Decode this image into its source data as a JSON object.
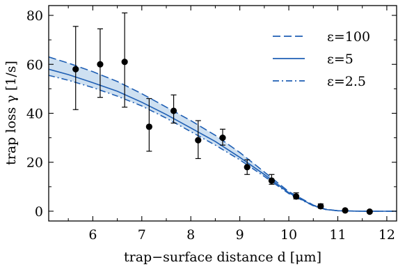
{
  "chart_data": {
    "type": "line",
    "xlabel": "trap−surface distance d [μm]",
    "ylabel": "trap loss γ [1/s]",
    "xlim": [
      5.1,
      12.2
    ],
    "ylim": [
      -4,
      84
    ],
    "x_ticks": [
      "6",
      "7",
      "8",
      "9",
      "10",
      "11",
      "12"
    ],
    "x_tick_values": [
      6,
      7,
      8,
      9,
      10,
      11,
      12
    ],
    "y_ticks": [
      "0",
      "20",
      "40",
      "60",
      "80"
    ],
    "y_tick_values": [
      0,
      20,
      40,
      60,
      80
    ],
    "line_color": "#1f5fb4",
    "band_color": "#c6dbef",
    "legend": {
      "placement": "top-right",
      "entries": [
        "ε=100",
        "ε=5",
        "ε=2.5"
      ]
    },
    "series": [
      {
        "name": "ε=100",
        "style": "dashed",
        "x": [
          5.1,
          5.5,
          6.0,
          6.5,
          7.0,
          7.5,
          8.0,
          8.5,
          9.0,
          9.5,
          10.0,
          10.5,
          10.75,
          11.0,
          11.5,
          12.2
        ],
        "y": [
          63.0,
          60.5,
          57.0,
          53.0,
          48.0,
          42.5,
          37.0,
          31.0,
          24.0,
          16.0,
          8.0,
          2.5,
          0.8,
          0.2,
          0.0,
          0.0
        ]
      },
      {
        "name": "ε=5",
        "style": "solid",
        "x": [
          5.1,
          5.5,
          6.0,
          6.5,
          7.0,
          7.5,
          8.0,
          8.5,
          9.0,
          9.5,
          10.0,
          10.5,
          10.75,
          11.0,
          11.5,
          12.2
        ],
        "y": [
          58.0,
          55.8,
          52.5,
          49.0,
          44.5,
          39.5,
          34.0,
          28.5,
          22.0,
          15.0,
          7.5,
          2.3,
          0.7,
          0.2,
          0.0,
          0.0
        ]
      },
      {
        "name": "ε=2.5",
        "style": "dashdot",
        "x": [
          5.1,
          5.5,
          6.0,
          6.5,
          7.0,
          7.5,
          8.0,
          8.5,
          9.0,
          9.5,
          10.0,
          10.5,
          10.75,
          11.0,
          11.5,
          12.2
        ],
        "y": [
          55.5,
          53.5,
          50.5,
          47.0,
          43.0,
          38.0,
          32.5,
          27.0,
          21.0,
          14.2,
          7.2,
          2.2,
          0.7,
          0.2,
          0.0,
          0.0
        ]
      }
    ],
    "data_points": {
      "x": [
        5.65,
        6.15,
        6.65,
        7.15,
        7.65,
        8.15,
        8.65,
        9.15,
        9.65,
        10.15,
        10.65,
        11.15,
        11.65
      ],
      "y": [
        58.0,
        60.0,
        61.0,
        34.5,
        41.0,
        29.0,
        30.0,
        18.0,
        12.5,
        6.0,
        2.0,
        0.3,
        -0.2
      ],
      "err_low": [
        41.5,
        46.5,
        42.5,
        24.5,
        36.0,
        21.5,
        27.0,
        15.0,
        11.0,
        5.0,
        1.2,
        0.3,
        -0.2
      ],
      "err_high": [
        75.5,
        74.5,
        81.0,
        46.0,
        47.5,
        37.0,
        33.5,
        21.0,
        15.0,
        7.5,
        3.0,
        0.3,
        -0.2
      ]
    }
  }
}
